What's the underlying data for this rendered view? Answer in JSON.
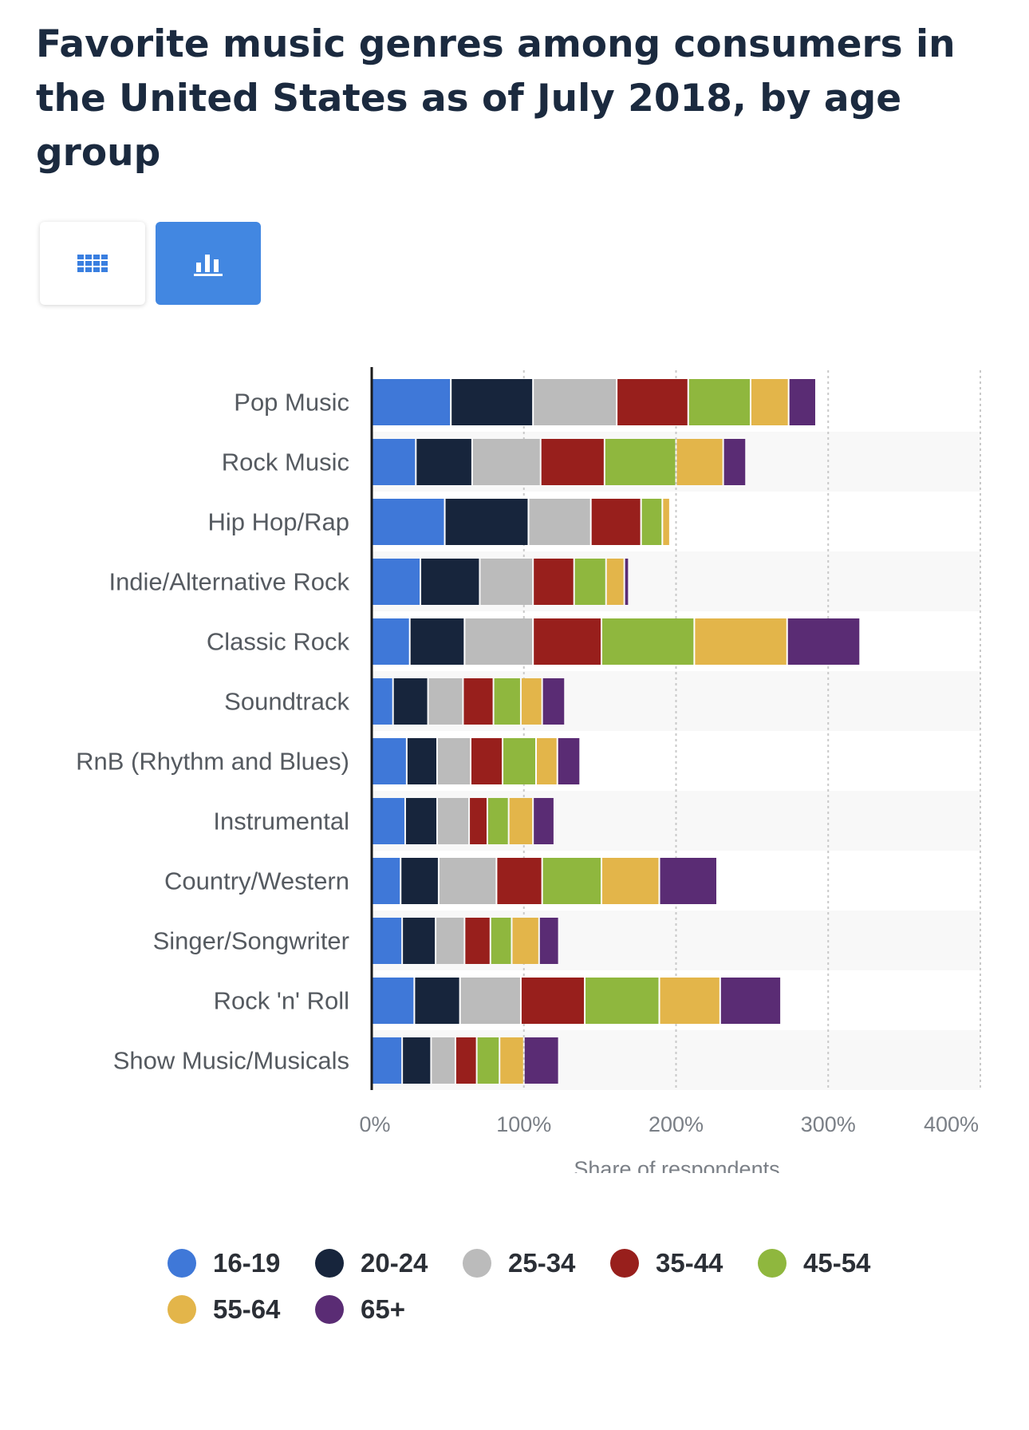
{
  "title": "Favorite music genres among consumers in the United States as of July 2018, by age group",
  "toolbar": {
    "table_view_icon": "table-grid-icon",
    "chart_view_icon": "bar-chart-icon"
  },
  "colors": {
    "16-19": "#3f78d8",
    "20-24": "#17253c",
    "25-34": "#bbbbbb",
    "35-44": "#981f1c",
    "45-54": "#8fb73e",
    "55-64": "#e3b54a",
    "65+": "#5a2c74"
  },
  "chart_data": {
    "type": "bar",
    "orientation": "horizontal",
    "stacked": true,
    "categories": [
      "Pop Music",
      "Rock Music",
      "Hip Hop/Rap",
      "Indie/Alternative Rock",
      "Classic Rock",
      "Soundtrack",
      "RnB (Rhythm and Blues)",
      "Instrumental",
      "Country/Western",
      "Singer/Songwriter",
      "Rock 'n' Roll",
      "Show Music/Musicals"
    ],
    "series": [
      {
        "name": "16-19",
        "values": [
          52,
          29,
          48,
          32,
          25,
          14,
          23,
          22,
          19,
          20,
          28,
          20
        ]
      },
      {
        "name": "20-24",
        "values": [
          54,
          37,
          55,
          39,
          36,
          23,
          20,
          21,
          25,
          22,
          30,
          19
        ]
      },
      {
        "name": "25-34",
        "values": [
          55,
          45,
          41,
          35,
          45,
          23,
          22,
          21,
          38,
          19,
          40,
          16
        ]
      },
      {
        "name": "35-44",
        "values": [
          47,
          42,
          33,
          27,
          45,
          20,
          21,
          12,
          30,
          17,
          42,
          14
        ]
      },
      {
        "name": "45-54",
        "values": [
          41,
          47,
          14,
          21,
          61,
          18,
          22,
          14,
          39,
          14,
          49,
          15
        ]
      },
      {
        "name": "55-64",
        "values": [
          25,
          31,
          5,
          12,
          61,
          14,
          14,
          16,
          38,
          18,
          40,
          16
        ]
      },
      {
        "name": "65+",
        "values": [
          18,
          15,
          0,
          3,
          48,
          15,
          15,
          14,
          38,
          13,
          40,
          23
        ]
      }
    ],
    "xlabel": "Share of respondents",
    "ylabel": "",
    "xlim": [
      0,
      400
    ],
    "ticks": [
      "0%",
      "100%",
      "200%",
      "300%",
      "400%"
    ],
    "grid": true,
    "legend": "bottom"
  }
}
